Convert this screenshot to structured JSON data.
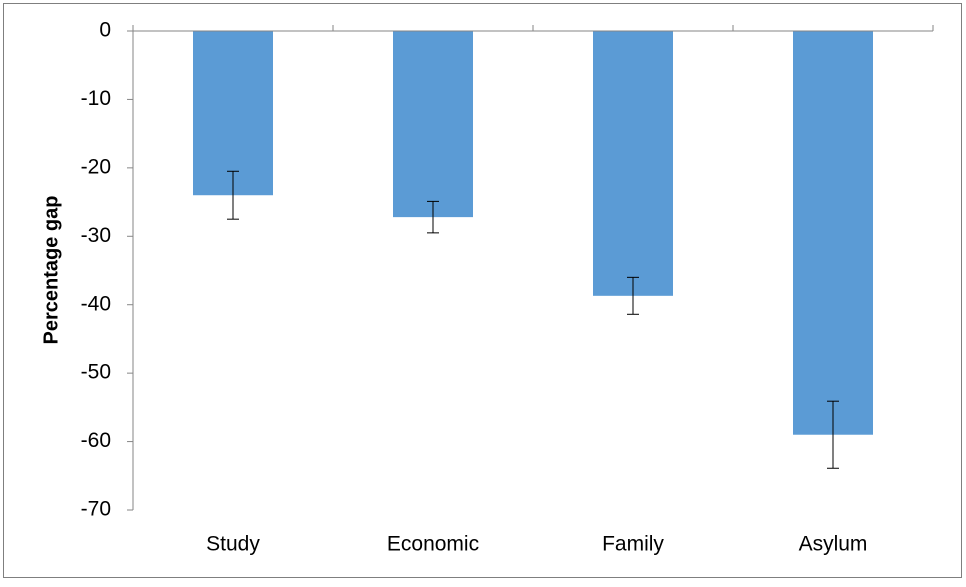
{
  "chart_data": {
    "type": "bar",
    "y_label": "Percentage gap",
    "categories": [
      "Study",
      "Economic",
      "Family",
      "Asylum"
    ],
    "values": [
      -24,
      -27.2,
      -38.7,
      -59
    ],
    "errors": [
      3.5,
      2.3,
      2.7,
      4.9
    ],
    "color": "#5b9bd5",
    "ylim": [
      -70,
      0
    ],
    "yticks": [
      0,
      -10,
      -20,
      -30,
      -40,
      -50,
      -60,
      -70
    ],
    "grid": false
  }
}
